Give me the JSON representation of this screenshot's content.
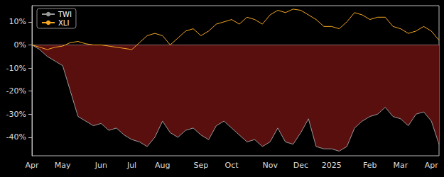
{
  "chart_data": {
    "type": "line",
    "categories": [
      "Apr",
      null,
      null,
      null,
      "May",
      null,
      null,
      null,
      null,
      "Jun",
      null,
      null,
      null,
      "Jul",
      null,
      null,
      null,
      "Aug",
      null,
      null,
      null,
      null,
      "Sep",
      null,
      null,
      null,
      "Oct",
      null,
      null,
      null,
      null,
      "Nov",
      null,
      null,
      null,
      "Dec",
      null,
      null,
      null,
      "2025",
      null,
      null,
      null,
      null,
      "Feb",
      null,
      null,
      null,
      "Mar",
      null,
      null,
      null,
      "Apr",
      null
    ],
    "series": [
      {
        "name": "TWI",
        "color": "#999999",
        "line_style": "solid",
        "values": [
          0,
          -2,
          -5,
          -7,
          -9,
          -20,
          -31,
          -33,
          -35,
          -34,
          -37,
          -36,
          -39,
          -41,
          -42,
          -44,
          -40,
          -33,
          -38,
          -40,
          -37,
          -36,
          -39,
          -41,
          -35,
          -33,
          -36,
          -39,
          -42,
          -41,
          -44,
          -42,
          -36,
          -42,
          -43,
          -38,
          -32,
          -44,
          -45,
          -45,
          -46,
          -44,
          -36,
          -33,
          -31,
          -30,
          -27,
          -31,
          -32,
          -35,
          -30,
          -29,
          -33,
          -43
        ]
      },
      {
        "name": "XLI",
        "color": "#f5a623",
        "line_style": "solid",
        "values": [
          0,
          -1,
          -2,
          -1,
          -0.5,
          1,
          1.5,
          0.5,
          0,
          0,
          -0.5,
          -1,
          -1.5,
          -2,
          1,
          4,
          5,
          4,
          0,
          3,
          6,
          7,
          4,
          6,
          9,
          10,
          11,
          9,
          12,
          11,
          9,
          13,
          15,
          14,
          15.5,
          15,
          13,
          11,
          8,
          8,
          7,
          10,
          14,
          13,
          11,
          12,
          12,
          8,
          7,
          5,
          6,
          8,
          6,
          2
        ]
      }
    ],
    "ylim": [
      -48,
      17
    ],
    "yticks": [
      {
        "value": -40,
        "label": "-40%"
      },
      {
        "value": -30,
        "label": "-30%"
      },
      {
        "value": -20,
        "label": "-20%"
      },
      {
        "value": -10,
        "label": "-10%"
      },
      {
        "value": 0,
        "label": "0%"
      },
      {
        "value": 10,
        "label": "10%"
      }
    ],
    "grid": false,
    "legend": "upper left"
  }
}
